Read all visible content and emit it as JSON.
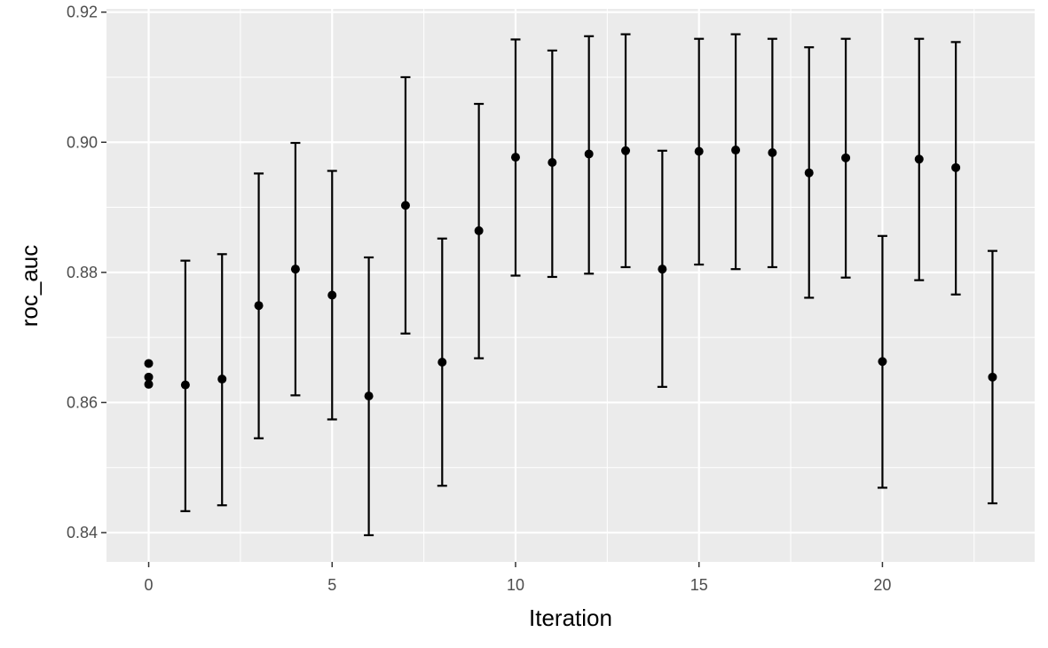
{
  "chart_data": {
    "type": "scatter",
    "title": "",
    "xlabel": "Iteration",
    "ylabel": "roc_auc",
    "xlim": [
      -1.15,
      24.15
    ],
    "ylim": [
      0.8355,
      0.9205
    ],
    "x_ticks": [
      0,
      5,
      10,
      15,
      20
    ],
    "x_tick_labels": [
      "0",
      "5",
      "10",
      "15",
      "20"
    ],
    "y_ticks": [
      0.84,
      0.86,
      0.88,
      0.9,
      0.92
    ],
    "y_tick_labels": [
      "0.84",
      "0.86",
      "0.88",
      "0.90",
      "0.92"
    ],
    "grid": true,
    "legend": "none",
    "colors": {
      "panel": "#ebebeb",
      "grid": "#ffffff",
      "points": "#000000",
      "ticks": "#4d4d4d"
    },
    "points": [
      {
        "x": 0,
        "y": 0.866
      },
      {
        "x": 0,
        "y": 0.8639
      },
      {
        "x": 0,
        "y": 0.8628
      },
      {
        "x": 1,
        "y": 0.8627,
        "ymin": 0.8433,
        "ymax": 0.8818
      },
      {
        "x": 2,
        "y": 0.8636,
        "ymin": 0.8442,
        "ymax": 0.8828
      },
      {
        "x": 3,
        "y": 0.8749,
        "ymin": 0.8545,
        "ymax": 0.8952
      },
      {
        "x": 4,
        "y": 0.8805,
        "ymin": 0.8611,
        "ymax": 0.8999
      },
      {
        "x": 5,
        "y": 0.8765,
        "ymin": 0.8574,
        "ymax": 0.8956
      },
      {
        "x": 6,
        "y": 0.861,
        "ymin": 0.8396,
        "ymax": 0.8823
      },
      {
        "x": 7,
        "y": 0.8903,
        "ymin": 0.8706,
        "ymax": 0.91
      },
      {
        "x": 8,
        "y": 0.8662,
        "ymin": 0.8472,
        "ymax": 0.8852
      },
      {
        "x": 9,
        "y": 0.8864,
        "ymin": 0.8668,
        "ymax": 0.9059
      },
      {
        "x": 10,
        "y": 0.8977,
        "ymin": 0.8795,
        "ymax": 0.9158
      },
      {
        "x": 11,
        "y": 0.8969,
        "ymin": 0.8793,
        "ymax": 0.9141
      },
      {
        "x": 12,
        "y": 0.8982,
        "ymin": 0.8798,
        "ymax": 0.9163
      },
      {
        "x": 13,
        "y": 0.8987,
        "ymin": 0.8808,
        "ymax": 0.9166
      },
      {
        "x": 14,
        "y": 0.8805,
        "ymin": 0.8624,
        "ymax": 0.8987
      },
      {
        "x": 15,
        "y": 0.8986,
        "ymin": 0.8812,
        "ymax": 0.9159
      },
      {
        "x": 16,
        "y": 0.8988,
        "ymin": 0.8805,
        "ymax": 0.9166
      },
      {
        "x": 17,
        "y": 0.8984,
        "ymin": 0.8808,
        "ymax": 0.9159
      },
      {
        "x": 18,
        "y": 0.8953,
        "ymin": 0.8761,
        "ymax": 0.9146
      },
      {
        "x": 19,
        "y": 0.8976,
        "ymin": 0.8792,
        "ymax": 0.9159
      },
      {
        "x": 20,
        "y": 0.8663,
        "ymin": 0.8469,
        "ymax": 0.8856
      },
      {
        "x": 21,
        "y": 0.8974,
        "ymin": 0.8788,
        "ymax": 0.9159
      },
      {
        "x": 22,
        "y": 0.8961,
        "ymin": 0.8766,
        "ymax": 0.9154
      },
      {
        "x": 23,
        "y": 0.8639,
        "ymin": 0.8445,
        "ymax": 0.8833
      }
    ]
  }
}
